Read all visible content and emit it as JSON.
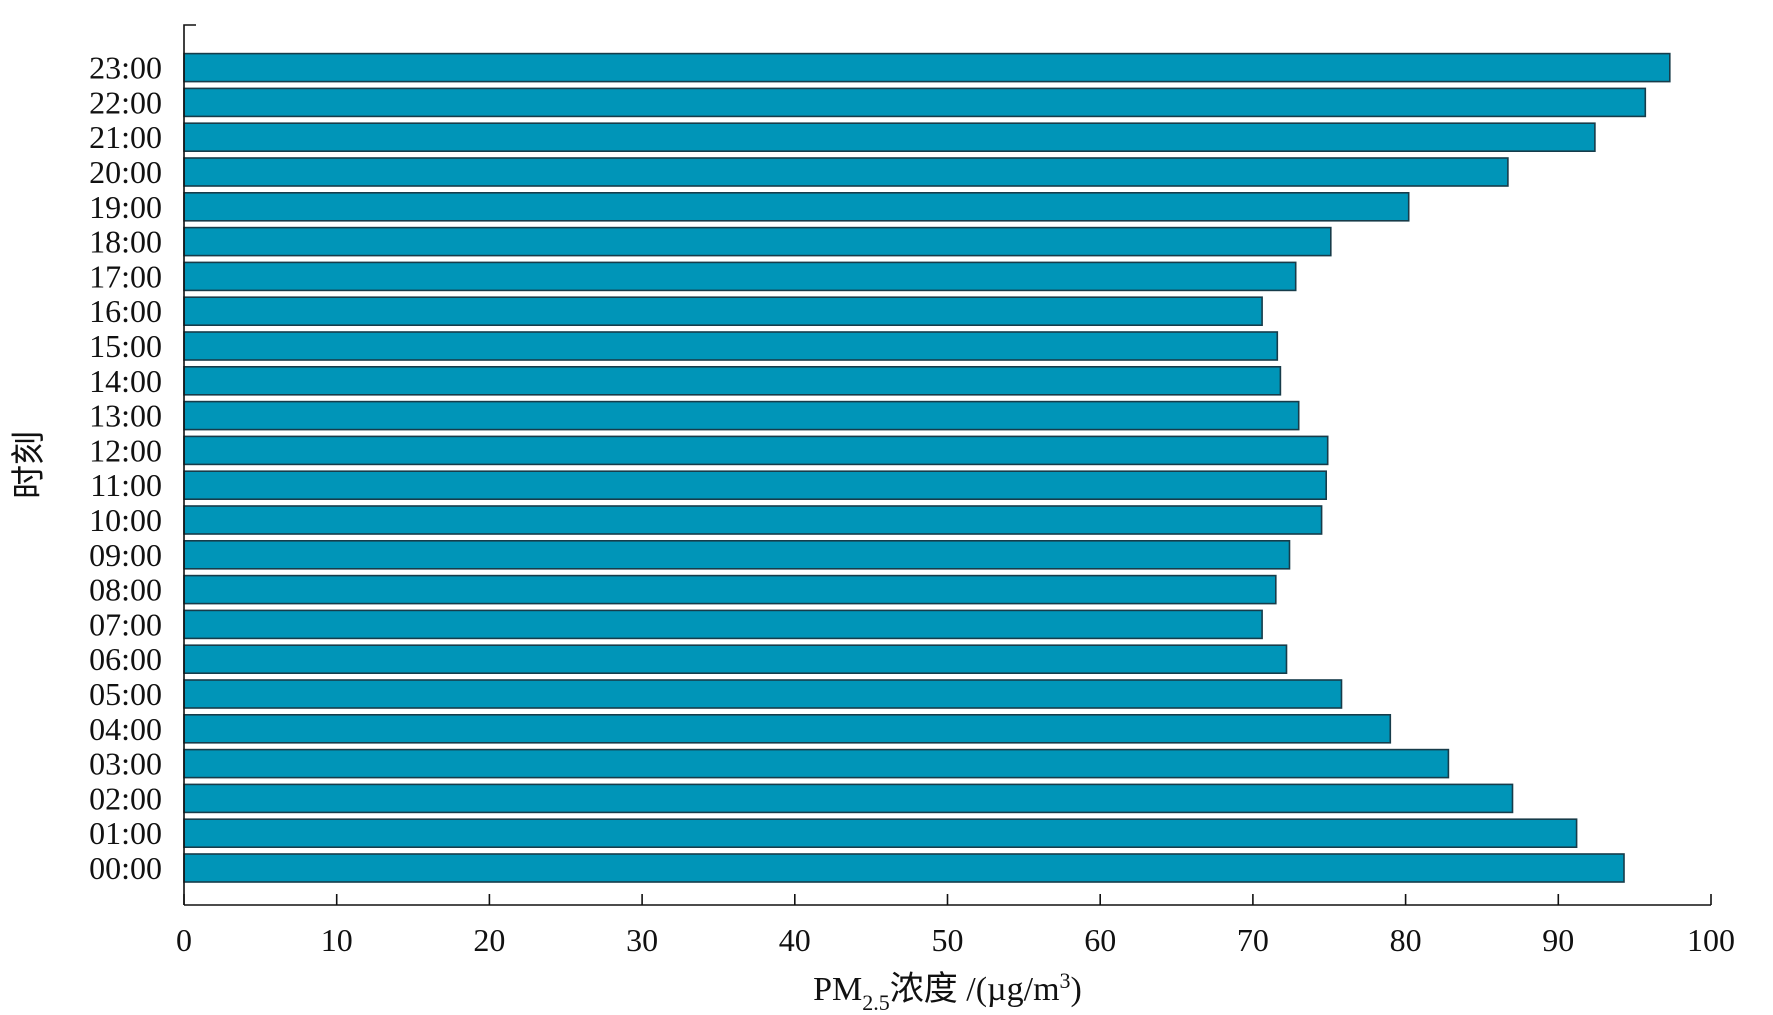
{
  "chart_data": {
    "type": "bar",
    "orientation": "horizontal",
    "title": "",
    "xlabel": {
      "prefix": "PM",
      "subscript": "2.5",
      "middle": "浓度 /(µg/m",
      "superscript": "3",
      "suffix": ")"
    },
    "ylabel": "时刻",
    "xlim": [
      0,
      100
    ],
    "xticks": [
      "0",
      "10",
      "20",
      "30",
      "40",
      "50",
      "60",
      "70",
      "80",
      "90",
      "100"
    ],
    "categories": [
      "00:00",
      "01:00",
      "02:00",
      "03:00",
      "04:00",
      "05:00",
      "06:00",
      "07:00",
      "08:00",
      "09:00",
      "10:00",
      "11:00",
      "12:00",
      "13:00",
      "14:00",
      "15:00",
      "16:00",
      "17:00",
      "18:00",
      "19:00",
      "20:00",
      "21:00",
      "22:00",
      "23:00"
    ],
    "values": [
      94.3,
      91.2,
      87.0,
      82.8,
      79.0,
      75.8,
      72.2,
      70.6,
      71.5,
      72.4,
      74.5,
      74.8,
      74.9,
      73.0,
      71.8,
      71.6,
      70.6,
      72.8,
      75.1,
      80.2,
      86.7,
      92.4,
      95.7,
      97.3
    ],
    "bar_color": "#0095b8",
    "grid": false,
    "legend": "none"
  }
}
